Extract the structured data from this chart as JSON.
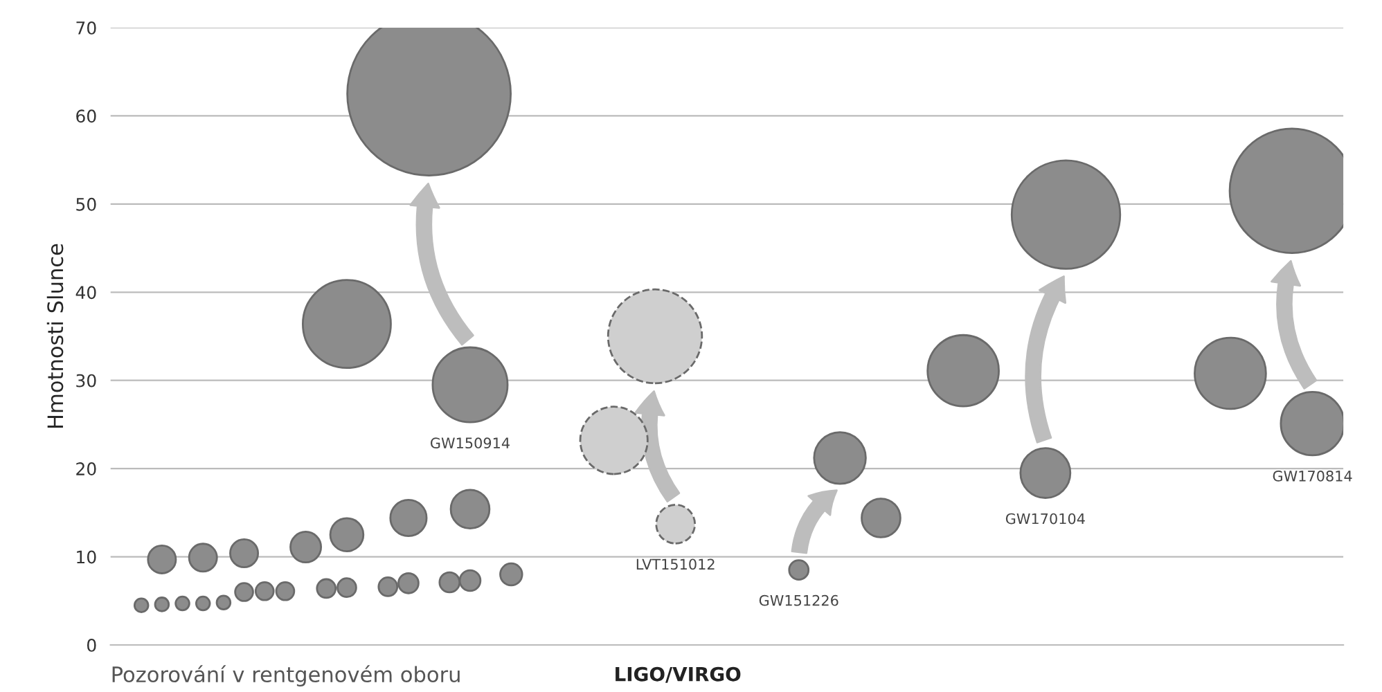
{
  "chart_data": {
    "type": "bubble",
    "ylabel": "Hmotnosti Slunce",
    "ylim": [
      0,
      70
    ],
    "yticks": [
      0,
      10,
      20,
      30,
      40,
      50,
      60,
      70
    ],
    "grid": "y",
    "tick_labels": "y",
    "categories": [
      null,
      null,
      null,
      null,
      null,
      null,
      null,
      null,
      null,
      null,
      null,
      null,
      null,
      null,
      null,
      null,
      null,
      null,
      null,
      null,
      null,
      null,
      null,
      null,
      null,
      null,
      null,
      null,
      null,
      null,
      null,
      null,
      null,
      null,
      null,
      null,
      null,
      null,
      null,
      null,
      null,
      null,
      null,
      null,
      null,
      null,
      null,
      null,
      null,
      null,
      null,
      null,
      null,
      null,
      null,
      null,
      null,
      null,
      null,
      null
    ],
    "series": [
      {
        "color": "#8c8c8c",
        "values": [
          null,
          4.5,
          4.6,
          4.7,
          4.7,
          4.8,
          6.0,
          6.1,
          6.1,
          null,
          6.4,
          6.5,
          null,
          6.6,
          7.0,
          null,
          7.1,
          7.3,
          null,
          8.0,
          null,
          null,
          null,
          null,
          null,
          null,
          null,
          null,
          null,
          null,
          null,
          null,
          null,
          null,
          null,
          null,
          null,
          null,
          null,
          null,
          null,
          null,
          null,
          null,
          null,
          null,
          null,
          null,
          null,
          null,
          null,
          null,
          null,
          null,
          null,
          null,
          null,
          null,
          null,
          null
        ],
        "sizes": [
          null,
          0.007,
          0.007,
          0.007,
          0.007,
          0.007,
          0.012,
          0.012,
          0.012,
          null,
          0.013,
          0.013,
          null,
          0.013,
          0.015,
          null,
          0.015,
          0.016,
          null,
          0.018,
          null,
          null,
          null,
          null,
          null,
          null,
          null,
          null,
          null,
          null,
          null,
          null,
          null,
          null,
          null,
          null,
          null,
          null,
          null,
          null,
          null,
          null,
          null,
          null,
          null,
          null,
          null,
          null,
          null,
          null,
          null,
          null,
          null,
          null,
          null,
          null,
          null,
          null,
          null,
          null
        ]
      },
      {
        "color": "#8c8c8c",
        "values": [
          null,
          null,
          9.7,
          null,
          9.9,
          null,
          10.4,
          null,
          null,
          11.1,
          null,
          12.5,
          null,
          null,
          14.4,
          null,
          null,
          15.4,
          null,
          null,
          null,
          null,
          null,
          null,
          null,
          null,
          null,
          null,
          null,
          null,
          null,
          null,
          null,
          null,
          null,
          null,
          null,
          null,
          null,
          null,
          null,
          null,
          null,
          null,
          null,
          null,
          null,
          null,
          null,
          null,
          null,
          null,
          null,
          null,
          null,
          null,
          null,
          null,
          null,
          null
        ],
        "sizes": [
          null,
          null,
          0.029,
          null,
          0.029,
          null,
          0.029,
          null,
          null,
          0.035,
          null,
          0.041,
          null,
          null,
          0.049,
          null,
          null,
          0.056,
          null,
          null,
          null,
          null,
          null,
          null,
          null,
          null,
          null,
          null,
          null,
          null,
          null,
          null,
          null,
          null,
          null,
          null,
          null,
          null,
          null,
          null,
          null,
          null,
          null,
          null,
          null,
          null,
          null,
          null,
          null,
          null,
          null,
          null,
          null,
          null,
          null,
          null,
          null,
          null,
          null,
          null
        ]
      },
      {
        "name": "GW150914",
        "color": "#8c8c8c",
        "values": [
          null,
          null,
          null,
          null,
          null,
          null,
          null,
          null,
          null,
          null,
          null,
          36.4,
          null,
          null,
          null,
          62.5,
          null,
          29.5,
          null,
          null,
          null,
          null,
          null,
          null,
          null,
          null,
          null,
          null,
          null,
          null,
          null,
          null,
          null,
          null,
          null,
          null,
          null,
          null,
          null,
          null,
          null,
          null,
          null,
          null,
          null,
          null,
          null,
          null,
          null,
          null,
          null,
          null,
          null,
          null,
          null,
          null,
          null,
          null,
          null,
          null
        ],
        "sizes": [
          null,
          null,
          null,
          null,
          null,
          null,
          null,
          null,
          null,
          null,
          null,
          0.29,
          null,
          null,
          null,
          1,
          null,
          0.21,
          null,
          null,
          null,
          null,
          null,
          null,
          null,
          null,
          null,
          null,
          null,
          null,
          null,
          null,
          null,
          null,
          null,
          null,
          null,
          null,
          null,
          null,
          null,
          null,
          null,
          null,
          null,
          null,
          null,
          null,
          null,
          null,
          null,
          null,
          null,
          null,
          null,
          null,
          null,
          null,
          null,
          null
        ]
      },
      {
        "name": "LVT151012",
        "color": "#cfcfcf",
        "line_style": "dashed",
        "values": [
          null,
          null,
          null,
          null,
          null,
          null,
          null,
          null,
          null,
          null,
          null,
          null,
          null,
          null,
          null,
          null,
          null,
          null,
          null,
          null,
          null,
          null,
          null,
          null,
          23.2,
          null,
          35.0,
          13.7,
          null,
          null,
          null,
          null,
          null,
          null,
          null,
          null,
          null,
          null,
          null,
          null,
          null,
          null,
          null,
          null,
          null,
          null,
          null,
          null,
          null,
          null,
          null,
          null,
          null,
          null,
          null,
          null,
          null,
          null,
          null,
          null
        ],
        "sizes": [
          null,
          null,
          null,
          null,
          null,
          null,
          null,
          null,
          null,
          null,
          null,
          null,
          null,
          null,
          null,
          null,
          null,
          null,
          null,
          null,
          null,
          null,
          null,
          null,
          0.17,
          null,
          0.33,
          0.056,
          null,
          null,
          null,
          null,
          null,
          null,
          null,
          null,
          null,
          null,
          null,
          null,
          null,
          null,
          null,
          null,
          null,
          null,
          null,
          null,
          null,
          null,
          null,
          null,
          null,
          null,
          null,
          null,
          null,
          null,
          null,
          null
        ]
      },
      {
        "name": "GW151226",
        "color": "#8c8c8c",
        "values": [
          null,
          null,
          null,
          null,
          null,
          null,
          null,
          null,
          null,
          null,
          null,
          null,
          null,
          null,
          null,
          null,
          null,
          null,
          null,
          null,
          null,
          null,
          null,
          null,
          null,
          null,
          null,
          null,
          null,
          null,
          null,
          null,
          null,
          8.5,
          null,
          21.2,
          null,
          14.4,
          null,
          null,
          null,
          null,
          null,
          null,
          null,
          null,
          null,
          null,
          null,
          null,
          null,
          null,
          null,
          null,
          null,
          null,
          null,
          null,
          null,
          null
        ],
        "sizes": [
          null,
          null,
          null,
          null,
          null,
          null,
          null,
          null,
          null,
          null,
          null,
          null,
          null,
          null,
          null,
          null,
          null,
          null,
          null,
          null,
          null,
          null,
          null,
          null,
          null,
          null,
          null,
          null,
          null,
          null,
          null,
          null,
          null,
          0.014,
          null,
          0.1,
          null,
          0.056,
          null,
          null,
          null,
          null,
          null,
          null,
          null,
          null,
          null,
          null,
          null,
          null,
          null,
          null,
          null,
          null,
          null,
          null,
          null,
          null,
          null,
          null
        ]
      },
      {
        "name": "GW170104",
        "color": "#8c8c8c",
        "values": [
          null,
          null,
          null,
          null,
          null,
          null,
          null,
          null,
          null,
          null,
          null,
          null,
          null,
          null,
          null,
          null,
          null,
          null,
          null,
          null,
          null,
          null,
          null,
          null,
          null,
          null,
          null,
          null,
          null,
          null,
          null,
          null,
          null,
          null,
          null,
          null,
          null,
          null,
          null,
          null,
          null,
          31.1,
          null,
          null,
          null,
          19.5,
          48.8,
          null,
          null,
          null,
          null,
          null,
          null,
          null,
          null,
          null,
          null,
          null,
          null,
          null
        ],
        "sizes": [
          null,
          null,
          null,
          null,
          null,
          null,
          null,
          null,
          null,
          null,
          null,
          null,
          null,
          null,
          null,
          null,
          null,
          null,
          null,
          null,
          null,
          null,
          null,
          null,
          null,
          null,
          null,
          null,
          null,
          null,
          null,
          null,
          null,
          null,
          null,
          null,
          null,
          null,
          null,
          null,
          null,
          0.19,
          null,
          null,
          null,
          0.093,
          0.44,
          null,
          null,
          null,
          null,
          null,
          null,
          null,
          null,
          null,
          null,
          null,
          null,
          null
        ]
      },
      {
        "name": "GW170814",
        "color": "#8c8c8c",
        "values": [
          null,
          null,
          null,
          null,
          null,
          null,
          null,
          null,
          null,
          null,
          null,
          null,
          null,
          null,
          null,
          null,
          null,
          null,
          null,
          null,
          null,
          null,
          null,
          null,
          null,
          null,
          null,
          null,
          null,
          null,
          null,
          null,
          null,
          null,
          null,
          null,
          null,
          null,
          null,
          null,
          null,
          null,
          null,
          null,
          null,
          null,
          null,
          null,
          null,
          null,
          null,
          null,
          null,
          null,
          30.8,
          null,
          null,
          51.5,
          25.1,
          null
        ],
        "sizes": [
          null,
          null,
          null,
          null,
          null,
          null,
          null,
          null,
          null,
          null,
          null,
          null,
          null,
          null,
          null,
          null,
          null,
          null,
          null,
          null,
          null,
          null,
          null,
          null,
          null,
          null,
          null,
          null,
          null,
          null,
          null,
          null,
          null,
          null,
          null,
          null,
          null,
          null,
          null,
          null,
          null,
          null,
          null,
          null,
          null,
          null,
          null,
          null,
          null,
          null,
          null,
          null,
          null,
          null,
          0.19,
          null,
          null,
          0.58,
          0.15,
          null
        ]
      }
    ],
    "annotations": [
      "Pozorování v rentgenovém oboru",
      "LIGO/VIRGO"
    ]
  }
}
